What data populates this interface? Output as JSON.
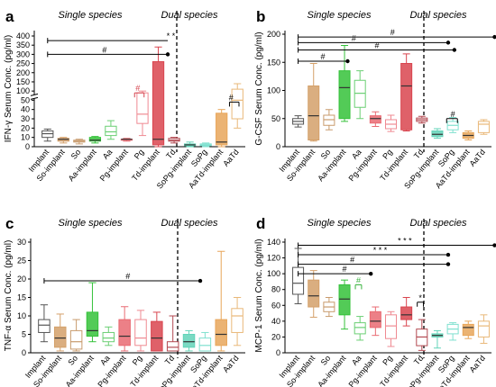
{
  "chart_data": [
    {
      "type": "box",
      "panel_label": "a",
      "ylabel": "IFN-γ Serum Conc. (pg/ml)",
      "y_ticks": [
        "0",
        "10",
        "20",
        "30",
        "40",
        "50",
        "100",
        "150",
        "200",
        "250",
        "300",
        "350",
        "400"
      ],
      "y_scale": "broken",
      "group_labels": {
        "single": "Single species",
        "dual": "Dual species"
      },
      "categories": [
        "Implant",
        "So-implant",
        "So",
        "Aa-implant",
        "Aa",
        "Pg-implant",
        "Pg",
        "Td-implant",
        "Td",
        "SoPg-implant",
        "SoPg",
        "AaTd-implant",
        "AaTd"
      ],
      "boxes": [
        {
          "min": 6,
          "q1": 10,
          "median": 14,
          "q3": 17,
          "max": 19
        },
        {
          "min": 4,
          "q1": 6,
          "median": 8,
          "q3": 9,
          "max": 10
        },
        {
          "min": 3,
          "q1": 5,
          "median": 6,
          "q3": 7,
          "max": 8
        },
        {
          "min": 4,
          "q1": 6,
          "median": 7,
          "q3": 10,
          "max": 11
        },
        {
          "min": 8,
          "q1": 12,
          "median": 16,
          "q3": 22,
          "max": 28
        },
        {
          "min": 6,
          "q1": 7,
          "median": 8,
          "q3": 8,
          "max": 9
        },
        {
          "min": 12,
          "q1": 25,
          "median": 35,
          "q3": 90,
          "max": 100
        },
        {
          "min": 0,
          "q1": 2,
          "median": 8,
          "q3": 260,
          "max": 340
        },
        {
          "min": 4,
          "q1": 6,
          "median": 7,
          "q3": 9,
          "max": 10
        },
        {
          "min": 0,
          "q1": 1,
          "median": 2,
          "q3": 3,
          "max": 5
        },
        {
          "min": 0,
          "q1": 1,
          "median": 2,
          "q3": 3,
          "max": 4
        },
        {
          "min": 0,
          "q1": 2,
          "median": 5,
          "q3": 36,
          "max": 40
        },
        {
          "min": 20,
          "q1": 30,
          "median": 50,
          "q3": 110,
          "max": 140
        }
      ],
      "annotations": [
        "* *",
        "#",
        "#",
        "#"
      ]
    },
    {
      "type": "box",
      "panel_label": "b",
      "ylabel": "G-CSF Serum Conc. (pg/ml)",
      "y_ticks": [
        "0",
        "50",
        "100",
        "150",
        "200"
      ],
      "ylim": [
        0,
        200
      ],
      "group_labels": {
        "single": "Single species",
        "dual": "Dual species"
      },
      "categories": [
        "Implant",
        "So-implant",
        "So",
        "Aa-implant",
        "Aa",
        "Pg-implant",
        "Pg",
        "Td-implant",
        "Td",
        "SoPg-implant",
        "SoPg",
        "AaTd-implant",
        "AaTd"
      ],
      "boxes": [
        {
          "min": 35,
          "q1": 40,
          "median": 45,
          "q3": 50,
          "max": 55
        },
        {
          "min": 10,
          "q1": 12,
          "median": 55,
          "q3": 108,
          "max": 148
        },
        {
          "min": 30,
          "q1": 38,
          "median": 48,
          "q3": 56,
          "max": 66
        },
        {
          "min": 45,
          "q1": 50,
          "median": 105,
          "q3": 135,
          "max": 180
        },
        {
          "min": 50,
          "q1": 70,
          "median": 95,
          "q3": 118,
          "max": 135
        },
        {
          "min": 36,
          "q1": 42,
          "median": 50,
          "q3": 55,
          "max": 62
        },
        {
          "min": 27,
          "q1": 32,
          "median": 40,
          "q3": 48,
          "max": 56
        },
        {
          "min": 28,
          "q1": 30,
          "median": 108,
          "q3": 148,
          "max": 165
        },
        {
          "min": 42,
          "q1": 45,
          "median": 48,
          "q3": 51,
          "max": 54
        },
        {
          "min": 15,
          "q1": 18,
          "median": 22,
          "q3": 28,
          "max": 32
        },
        {
          "min": 25,
          "q1": 30,
          "median": 38,
          "q3": 45,
          "max": 52
        },
        {
          "min": 12,
          "q1": 15,
          "median": 20,
          "q3": 25,
          "max": 28
        },
        {
          "min": 22,
          "q1": 25,
          "median": 40,
          "q3": 45,
          "max": 48
        }
      ],
      "annotations": [
        "#",
        "#",
        "#",
        "#",
        "#"
      ]
    },
    {
      "type": "box",
      "panel_label": "c",
      "ylabel": "TNF-α Serum Conc. (pg/ml)",
      "y_ticks": [
        "0",
        "5",
        "10",
        "15",
        "20",
        "25",
        "30"
      ],
      "ylim": [
        0,
        30
      ],
      "group_labels": {
        "single": "Single species",
        "dual": "Dual species"
      },
      "categories": [
        "Implant",
        "So-implant",
        "So",
        "Aa-implant",
        "Aa",
        "Pg-implant",
        "Pg",
        "Td-implant",
        "Td",
        "SoPg-implant",
        "SoPg",
        "AaTd-implant",
        "AaTd"
      ],
      "boxes": [
        {
          "min": 3,
          "q1": 5.5,
          "median": 7.5,
          "q3": 9,
          "max": 13
        },
        {
          "min": 0.5,
          "q1": 1.5,
          "median": 4,
          "q3": 7,
          "max": 10.5
        },
        {
          "min": 0.5,
          "q1": 1,
          "median": 3,
          "q3": 6,
          "max": 9
        },
        {
          "min": 3,
          "q1": 4.5,
          "median": 6,
          "q3": 11,
          "max": 19
        },
        {
          "min": 2,
          "q1": 3,
          "median": 4,
          "q3": 5.5,
          "max": 7
        },
        {
          "min": 0.5,
          "q1": 2,
          "median": 4.5,
          "q3": 9,
          "max": 12.5
        },
        {
          "min": 0.5,
          "q1": 2,
          "median": 4,
          "q3": 9,
          "max": 11.5
        },
        {
          "min": 0.5,
          "q1": 0.5,
          "median": 4,
          "q3": 8.5,
          "max": 11
        },
        {
          "min": 0.5,
          "q1": 0.5,
          "median": 1.5,
          "q3": 3,
          "max": 10
        },
        {
          "min": 0.5,
          "q1": 1.5,
          "median": 3,
          "q3": 5,
          "max": 6
        },
        {
          "min": 0.5,
          "q1": 0.5,
          "median": 2,
          "q3": 4,
          "max": 5.5
        },
        {
          "min": 0.5,
          "q1": 2,
          "median": 5,
          "q3": 9,
          "max": 27.5
        },
        {
          "min": 2,
          "q1": 5.5,
          "median": 10,
          "q3": 12,
          "max": 15
        }
      ],
      "annotations": [
        "#"
      ]
    },
    {
      "type": "box",
      "panel_label": "d",
      "ylabel": "MCP-1 Serum Conc. (pg/ml)",
      "y_ticks": [
        "0",
        "20",
        "40",
        "60",
        "80",
        "100",
        "120",
        "140"
      ],
      "ylim": [
        0,
        140
      ],
      "group_labels": {
        "single": "Single species",
        "dual": "Dual species"
      },
      "categories": [
        "Implant",
        "So-implant",
        "So",
        "Aa-implant",
        "Aa",
        "Pg-implant",
        "Pg",
        "Td-implant",
        "Td",
        "SoPg-implant",
        "SoPg",
        "AaTd-implant",
        "AaTd"
      ],
      "boxes": [
        {
          "min": 62,
          "q1": 74,
          "median": 88,
          "q3": 108,
          "max": 132
        },
        {
          "min": 45,
          "q1": 58,
          "median": 72,
          "q3": 92,
          "max": 104
        },
        {
          "min": 46,
          "q1": 52,
          "median": 58,
          "q3": 64,
          "max": 70
        },
        {
          "min": 30,
          "q1": 48,
          "median": 68,
          "q3": 86,
          "max": 92
        },
        {
          "min": 16,
          "q1": 24,
          "median": 32,
          "q3": 38,
          "max": 46
        },
        {
          "min": 22,
          "q1": 32,
          "median": 40,
          "q3": 52,
          "max": 58
        },
        {
          "min": 8,
          "q1": 18,
          "median": 34,
          "q3": 48,
          "max": 52
        },
        {
          "min": 34,
          "q1": 42,
          "median": 48,
          "q3": 58,
          "max": 70
        },
        {
          "min": 3,
          "q1": 9,
          "median": 20,
          "q3": 30,
          "max": 42
        },
        {
          "min": 6,
          "q1": 20,
          "median": 22,
          "q3": 24,
          "max": 28
        },
        {
          "min": 16,
          "q1": 24,
          "median": 30,
          "q3": 36,
          "max": 38
        },
        {
          "min": 18,
          "q1": 22,
          "median": 32,
          "q3": 36,
          "max": 40
        },
        {
          "min": 12,
          "q1": 20,
          "median": 34,
          "q3": 40,
          "max": 48
        }
      ],
      "annotations": [
        "* * *",
        "* * *",
        "#",
        "#",
        "#",
        "*"
      ]
    }
  ],
  "colors": {
    "Implant": "#555555",
    "So-implant": "#d4a06a",
    "So": "#c89b6d",
    "Aa-implant": "#35c23a",
    "Aa": "#6bcf74",
    "Pg-implant": "#e96a72",
    "Pg": "#ef8a92",
    "Td-implant": "#d9454f",
    "Td": "#b34a52",
    "SoPg-implant": "#63d4b9",
    "SoPg": "#7fe0cf",
    "AaTd-implant": "#e8a65a",
    "AaTd": "#e9b879",
    "significance_green": "#37b23c",
    "significance_red": "#d5454f"
  }
}
